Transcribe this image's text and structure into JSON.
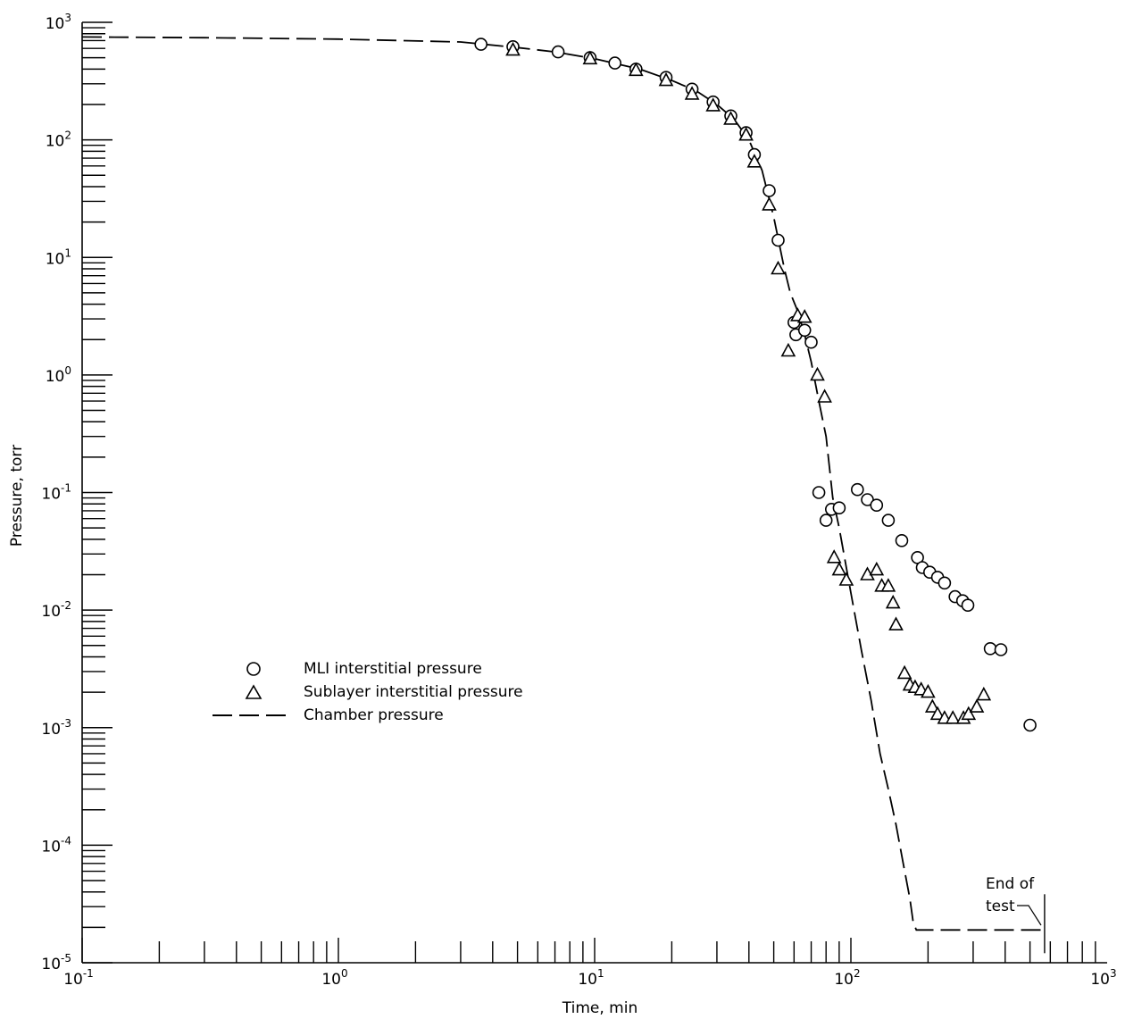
{
  "chart_data": {
    "type": "scatter",
    "xlabel": "Time, min",
    "ylabel": "Pressure, torr",
    "x_scale": "log",
    "y_scale": "log",
    "xlim": [
      0.1,
      1000
    ],
    "ylim": [
      1e-05,
      1000
    ],
    "grid": false,
    "legend_position": "left-center",
    "x_ticks": [
      {
        "base": "10",
        "exp": "-1",
        "value": 0.1
      },
      {
        "base": "10",
        "exp": "0",
        "value": 1
      },
      {
        "base": "10",
        "exp": "1",
        "value": 10
      },
      {
        "base": "10",
        "exp": "2",
        "value": 100
      },
      {
        "base": "10",
        "exp": "3",
        "value": 1000
      }
    ],
    "y_ticks": [
      {
        "base": "10",
        "exp": "-5",
        "value": 1e-05
      },
      {
        "base": "10",
        "exp": "-4",
        "value": 0.0001
      },
      {
        "base": "10",
        "exp": "-3",
        "value": 0.001
      },
      {
        "base": "10",
        "exp": "-2",
        "value": 0.01
      },
      {
        "base": "10",
        "exp": "-1",
        "value": 0.1
      },
      {
        "base": "10",
        "exp": "0",
        "value": 1
      },
      {
        "base": "10",
        "exp": "1",
        "value": 10
      },
      {
        "base": "10",
        "exp": "2",
        "value": 100
      },
      {
        "base": "10",
        "exp": "3",
        "value": 1000
      }
    ],
    "series": [
      {
        "name": "MLI interstitial pressure",
        "marker": "circle",
        "x": [
          3.6,
          4.8,
          7.2,
          9.6,
          12,
          14.5,
          19,
          24,
          29,
          34,
          39,
          42,
          48,
          52,
          60,
          61,
          66,
          70,
          75,
          80,
          84,
          90,
          106,
          116,
          126,
          140,
          158,
          182,
          190,
          203,
          218,
          232,
          255,
          273,
          286,
          350,
          385,
          500
        ],
        "y": [
          650,
          620,
          560,
          500,
          450,
          400,
          340,
          270,
          210,
          160,
          115,
          75,
          37,
          14,
          2.8,
          2.2,
          2.4,
          1.9,
          0.1,
          0.058,
          0.072,
          0.074,
          0.106,
          0.087,
          0.078,
          0.058,
          0.039,
          0.028,
          0.023,
          0.021,
          0.019,
          0.017,
          0.013,
          0.012,
          0.011,
          0.0047,
          0.0046,
          0.00105
        ]
      },
      {
        "name": "Sublayer interstitial pressure",
        "marker": "triangle",
        "x": [
          4.8,
          9.6,
          14.5,
          19,
          24,
          29,
          34,
          39,
          42,
          48,
          52,
          57,
          62,
          66,
          74,
          79,
          86,
          90,
          96,
          116,
          126,
          132,
          140,
          146,
          150,
          162,
          170,
          178,
          188,
          200,
          208,
          218,
          232,
          250,
          275,
          288,
          310,
          330
        ],
        "y": [
          580,
          490,
          390,
          320,
          245,
          195,
          150,
          110,
          65,
          28,
          8,
          1.6,
          3.2,
          3.1,
          1,
          0.65,
          0.028,
          0.022,
          0.018,
          0.02,
          0.022,
          0.016,
          0.016,
          0.0115,
          0.0075,
          0.0029,
          0.0023,
          0.0022,
          0.0021,
          0.002,
          0.0015,
          0.0013,
          0.0012,
          0.0012,
          0.0012,
          0.0013,
          0.0015,
          0.0019
        ]
      },
      {
        "name": "Chamber pressure",
        "marker": "dashed-line",
        "x": [
          0.1,
          0.3,
          1,
          3,
          5,
          7,
          10,
          15,
          20,
          25,
          30,
          35,
          40,
          45,
          50,
          55,
          58,
          62,
          66,
          70,
          75,
          80,
          85,
          90,
          100,
          110,
          120,
          130,
          140,
          150,
          160,
          170,
          175,
          180,
          200,
          300,
          400,
          570
        ],
        "y": [
          750,
          740,
          720,
          680,
          610,
          560,
          490,
          400,
          320,
          260,
          200,
          150,
          100,
          55,
          22,
          8,
          5,
          3.5,
          2.2,
          1.3,
          0.6,
          0.3,
          0.09,
          0.05,
          0.014,
          0.0045,
          0.0017,
          0.0006,
          0.0003,
          0.00015,
          7e-05,
          3.5e-05,
          2.2e-05,
          1.9e-05,
          1.9e-05,
          1.9e-05,
          1.9e-05,
          1.9e-05
        ]
      }
    ],
    "annotations": [
      {
        "text_lines": [
          "End of",
          "test"
        ],
        "x": 570,
        "y": 1.9e-05
      }
    ]
  }
}
